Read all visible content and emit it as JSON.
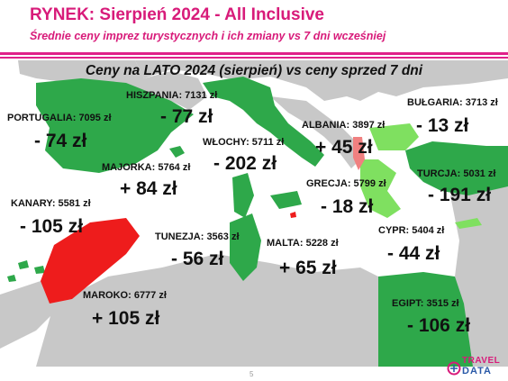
{
  "header": {
    "title": "RYNEK: Sierpień 2024 - All Inclusive",
    "subtitle": "Średnie ceny imprez turystycznych i ich zmiany vs 7 dni wcześniej"
  },
  "map": {
    "heading": "Ceny na LATO 2024 (sierpień) vs ceny sprzed 7 dni"
  },
  "colors": {
    "accent": "#e0218a",
    "sea": "#ffffff",
    "land": "#c8c8c8",
    "price_drop": "#2ea84a",
    "price_drop_light": "#7fe060",
    "price_rise": "#ee1c1c",
    "price_rise_light": "#f08080"
  },
  "destinations": [
    {
      "label": "HISZPANIA: 7131 zł",
      "change": "- 77 zł"
    },
    {
      "label": "PORTUGALIA: 7095 zł",
      "change": "- 74 zł"
    },
    {
      "label": "ALBANIA: 3897 zł",
      "change": "+ 45 zł"
    },
    {
      "label": "BUŁGARIA: 3713 zł",
      "change": "- 13 zł"
    },
    {
      "label": "WŁOCHY: 5711 zł",
      "change": "- 202 zł"
    },
    {
      "label": "MAJORKA: 5764 zł",
      "change": "+ 84 zł"
    },
    {
      "label": "TURCJA: 5031 zł",
      "change": "- 191 zł"
    },
    {
      "label": "GRECJA: 5799 zł",
      "change": "- 18 zł"
    },
    {
      "label": "KANARY: 5581 zł",
      "change": "- 105 zł"
    },
    {
      "label": "TUNEZJA: 3563 zł",
      "change": "- 56 zł"
    },
    {
      "label": "MALTA: 5228 zł",
      "change": "+ 65 zł"
    },
    {
      "label": "CYPR: 5404 zł",
      "change": "- 44 zł"
    },
    {
      "label": "MAROKO: 6777 zł",
      "change": "+ 105 zł"
    },
    {
      "label": "EGIPT: 3515 zł",
      "change": "- 106 zł"
    }
  ],
  "footer": {
    "page_number": "5",
    "logo_top": "TRAVEL",
    "logo_bottom": "DATA"
  }
}
